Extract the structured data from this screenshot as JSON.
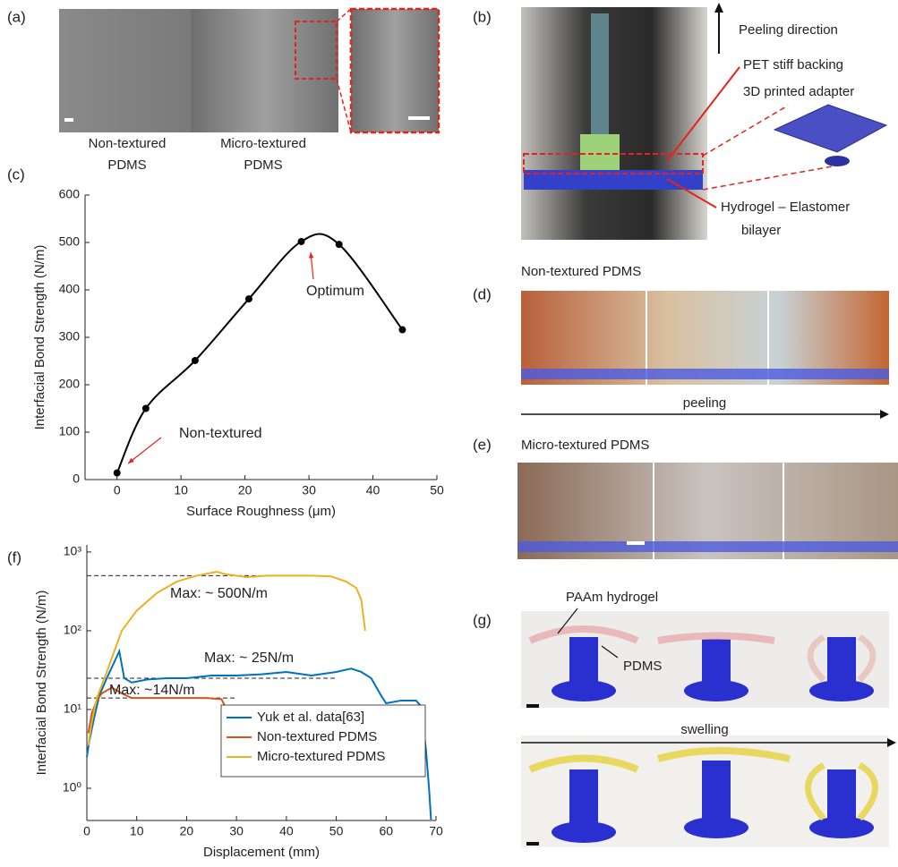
{
  "figure": {
    "panel_labels": [
      "(a)",
      "(b)",
      "(c)",
      "(d)",
      "(e)",
      "(f)",
      "(g)"
    ],
    "a": {
      "captions": [
        [
          "Non-textured",
          "PDMS"
        ],
        [
          "Micro-textured",
          "PDMS"
        ]
      ]
    },
    "b": {
      "labels": [
        "Peeling direction",
        "PET stiff backing",
        "3D printed adapter",
        "Hydrogel – Elastomer",
        "bilayer"
      ]
    },
    "d": {
      "title": "Non-textured PDMS",
      "arrow_label": "peeling"
    },
    "e": {
      "title": "Micro-textured PDMS"
    },
    "g": {
      "labels": [
        "PAAm hydrogel",
        "PDMS"
      ],
      "arrow_label": "swelling"
    }
  },
  "chart_data": [
    {
      "type": "line",
      "smooth": true,
      "markers": true,
      "xlabel": "Surface Roughness (μm)",
      "ylabel": "Interfacial Bond Strength (N/m)",
      "xlim": [
        -5,
        50
      ],
      "xticks": [
        0,
        10,
        20,
        30,
        40,
        50
      ],
      "ylim": [
        0,
        600
      ],
      "yticks": [
        0,
        100,
        200,
        300,
        400,
        500,
        600
      ],
      "series": [
        {
          "color": "#000000",
          "x": [
            0,
            4.5,
            12.2,
            20.6,
            28.8,
            34.7,
            44.6
          ],
          "values": [
            14,
            150,
            251,
            381,
            502,
            496,
            316
          ]
        }
      ],
      "annotations": [
        {
          "text": "Optimum",
          "color": "#e8211b"
        },
        {
          "text": "Non-textured",
          "color": "#e8211b"
        }
      ]
    },
    {
      "type": "line",
      "log_y": true,
      "legend": "lower right",
      "xlabel": "Displacement (mm)",
      "ylabel": "Interfacial Bond Strength (N/m)",
      "xlim": [
        0,
        70
      ],
      "xticks": [
        0,
        10,
        20,
        30,
        40,
        50,
        60,
        70
      ],
      "ylim": [
        0.39,
        1230
      ],
      "yticks": [
        {
          "value": 1,
          "label": "10⁰"
        },
        {
          "value": 10,
          "label": "10¹"
        },
        {
          "value": 100,
          "label": "10²"
        },
        {
          "value": 1000,
          "label": "10³"
        }
      ],
      "series": [
        {
          "name": "Yuk et al. data[63]",
          "color": "#0072bd",
          "x": [
            0,
            0.5,
            1.5,
            2.5,
            4,
            5.5,
            6.5,
            7.5,
            9,
            12,
            16,
            20,
            25,
            30,
            35,
            40,
            45,
            50,
            53,
            55,
            57,
            59,
            60,
            63,
            66,
            67,
            68,
            68.6,
            69
          ],
          "values": [
            2.5,
            4,
            8,
            15,
            25,
            40,
            55,
            25,
            22,
            24,
            25,
            25,
            27,
            27,
            28,
            30,
            27,
            30,
            33,
            30,
            25,
            15,
            12,
            13,
            13,
            11,
            3,
            1,
            0.4
          ]
        },
        {
          "name": "Non-textured PDMS",
          "color": "#d95319",
          "x": [
            0.3,
            1,
            2,
            3,
            5,
            7,
            9,
            12,
            16,
            20,
            24,
            27,
            28,
            29
          ],
          "values": [
            5,
            9,
            13,
            16,
            19,
            16,
            14,
            14,
            14,
            14,
            14,
            13.5,
            10,
            5.5
          ]
        },
        {
          "name": "Micro-textured PDMS",
          "color": "#edb120",
          "x": [
            0.3,
            1,
            2,
            4,
            7,
            10,
            14,
            18,
            22,
            26,
            28,
            32,
            36,
            40,
            45,
            49,
            52,
            54,
            55,
            55.8
          ],
          "values": [
            3.5,
            7,
            14,
            30,
            100,
            180,
            300,
            420,
            500,
            560,
            520,
            480,
            500,
            500,
            500,
            490,
            420,
            350,
            250,
            100
          ]
        }
      ],
      "reference_lines": [
        {
          "y": 500,
          "x": [
            0,
            35
          ]
        },
        {
          "y": 25,
          "x": [
            0,
            50
          ]
        },
        {
          "y": 14,
          "x": [
            0,
            30
          ]
        }
      ],
      "annotations": [
        {
          "text": "Max: ~ 500N/m",
          "color": "#222222"
        },
        {
          "text": "Max: ~ 25N/m",
          "color": "#222222"
        },
        {
          "text": "Max:  ~14N/m",
          "color": "#222222"
        }
      ]
    }
  ]
}
